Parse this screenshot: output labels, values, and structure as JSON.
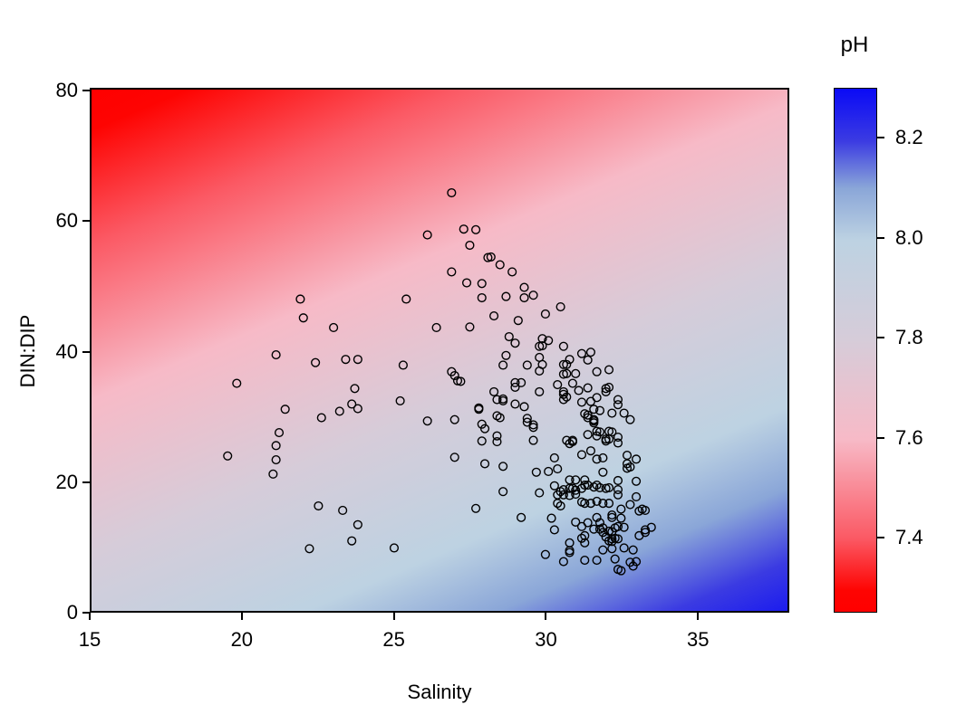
{
  "figure": {
    "background_color": "#ffffff"
  },
  "chart_data": {
    "type": "scatter",
    "title": "",
    "xlabel": "Salinity",
    "ylabel": "DIN:DIP",
    "xlim": [
      15,
      38
    ],
    "ylim": [
      0,
      80.4
    ],
    "x_ticks": [
      15,
      20,
      25,
      30,
      35
    ],
    "x_tick_labels": [
      "15",
      "20",
      "25",
      "30",
      "35"
    ],
    "y_ticks": [
      0,
      20,
      40,
      60,
      80
    ],
    "y_tick_labels": [
      "0",
      "20",
      "40",
      "60",
      "80"
    ],
    "grid": false,
    "marker": "open-circle",
    "marker_color": "#000000",
    "background_field": {
      "description": "diagonal gradient of predicted pH: red (low pH) at top-left to blue (high pH) at bottom-right",
      "angle_deg": 157,
      "stops": [
        {
          "pos": 0,
          "color": "#ff0000"
        },
        {
          "pos": 5,
          "color": "#fe0402"
        },
        {
          "pos": 19,
          "color": "#fb5964"
        },
        {
          "pos": 38,
          "color": "#f7bac7"
        },
        {
          "pos": 57,
          "color": "#d6ccd9"
        },
        {
          "pos": 75,
          "color": "#bdd2e2"
        },
        {
          "pos": 85,
          "color": "#8aa6d8"
        },
        {
          "pos": 94,
          "color": "#3b3be2"
        },
        {
          "pos": 100,
          "color": "#1c1cee"
        }
      ]
    },
    "colorbar": {
      "title": "pH",
      "range": [
        7.25,
        8.3
      ],
      "ticks": [
        8.2,
        8.0,
        7.8,
        7.6,
        7.4
      ],
      "tick_labels": [
        "8.2",
        "8.0",
        "7.8",
        "7.6",
        "7.4"
      ],
      "stops_top_to_bottom": [
        {
          "pos": 0,
          "color": "#0a0af6"
        },
        {
          "pos": 10,
          "color": "#3b3be2"
        },
        {
          "pos": 19,
          "color": "#8aa6d8"
        },
        {
          "pos": 29,
          "color": "#bdd2e2"
        },
        {
          "pos": 48,
          "color": "#d6ccd9"
        },
        {
          "pos": 67,
          "color": "#f7bac7"
        },
        {
          "pos": 86,
          "color": "#fb5964"
        },
        {
          "pos": 96,
          "color": "#fe0402"
        },
        {
          "pos": 100,
          "color": "#ff0000"
        }
      ]
    },
    "points": [
      [
        21.9,
        48.1
      ],
      [
        22.0,
        45.2
      ],
      [
        23.0,
        43.7
      ],
      [
        21.1,
        39.5
      ],
      [
        22.4,
        38.3
      ],
      [
        23.4,
        38.8
      ],
      [
        23.8,
        38.8
      ],
      [
        19.8,
        35.1
      ],
      [
        23.7,
        34.3
      ],
      [
        21.4,
        31.1
      ],
      [
        23.6,
        31.9
      ],
      [
        23.8,
        31.2
      ],
      [
        23.2,
        30.8
      ],
      [
        22.6,
        29.8
      ],
      [
        21.2,
        27.5
      ],
      [
        21.1,
        25.5
      ],
      [
        19.5,
        23.9
      ],
      [
        21.1,
        23.3
      ],
      [
        21.0,
        21.1
      ],
      [
        22.5,
        16.2
      ],
      [
        23.3,
        15.5
      ],
      [
        23.8,
        13.3
      ],
      [
        23.6,
        10.8
      ],
      [
        22.2,
        9.6
      ],
      [
        26.9,
        64.5
      ],
      [
        27.3,
        58.9
      ],
      [
        27.7,
        58.8
      ],
      [
        26.1,
        58.0
      ],
      [
        27.5,
        56.4
      ],
      [
        28.1,
        54.5
      ],
      [
        28.2,
        54.6
      ],
      [
        28.5,
        53.4
      ],
      [
        28.9,
        52.3
      ],
      [
        26.9,
        52.3
      ],
      [
        27.4,
        50.6
      ],
      [
        27.9,
        50.5
      ],
      [
        29.3,
        49.9
      ],
      [
        27.9,
        48.3
      ],
      [
        28.7,
        48.5
      ],
      [
        29.3,
        48.3
      ],
      [
        29.6,
        48.7
      ],
      [
        25.4,
        48.1
      ],
      [
        30.5,
        46.9
      ],
      [
        30.0,
        45.8
      ],
      [
        28.3,
        45.5
      ],
      [
        29.1,
        44.8
      ],
      [
        26.4,
        43.7
      ],
      [
        27.5,
        43.8
      ],
      [
        28.8,
        42.3
      ],
      [
        29.0,
        41.3
      ],
      [
        29.9,
        42.0
      ],
      [
        30.1,
        41.7
      ],
      [
        29.9,
        40.9
      ],
      [
        30.6,
        40.8
      ],
      [
        25.3,
        37.9
      ],
      [
        25.2,
        32.4
      ],
      [
        26.1,
        29.3
      ],
      [
        27.0,
        29.5
      ],
      [
        26.9,
        36.9
      ],
      [
        27.0,
        36.3
      ],
      [
        27.1,
        35.5
      ],
      [
        27.2,
        35.4
      ],
      [
        28.7,
        39.4
      ],
      [
        28.6,
        37.9
      ],
      [
        28.3,
        33.8
      ],
      [
        28.4,
        32.6
      ],
      [
        28.6,
        32.7
      ],
      [
        28.6,
        32.4
      ],
      [
        27.8,
        31.3
      ],
      [
        27.8,
        31.1
      ],
      [
        28.4,
        30.1
      ],
      [
        28.5,
        29.8
      ],
      [
        27.9,
        28.8
      ],
      [
        28.0,
        28.1
      ],
      [
        27.9,
        26.2
      ],
      [
        28.4,
        27.0
      ],
      [
        28.4,
        26.1
      ],
      [
        27.0,
        23.7
      ],
      [
        28.0,
        22.7
      ],
      [
        28.6,
        22.3
      ],
      [
        29.0,
        34.5
      ],
      [
        29.0,
        35.2
      ],
      [
        29.2,
        35.2
      ],
      [
        29.0,
        31.9
      ],
      [
        29.3,
        31.5
      ],
      [
        29.4,
        37.9
      ],
      [
        29.8,
        40.8
      ],
      [
        29.8,
        39.1
      ],
      [
        29.9,
        38.0
      ],
      [
        29.8,
        37.0
      ],
      [
        30.8,
        38.8
      ],
      [
        30.7,
        38.0
      ],
      [
        30.7,
        36.6
      ],
      [
        31.0,
        36.6
      ],
      [
        30.4,
        34.9
      ],
      [
        30.6,
        33.8
      ],
      [
        30.7,
        33.0
      ],
      [
        30.6,
        32.6
      ],
      [
        29.8,
        33.8
      ],
      [
        29.4,
        29.7
      ],
      [
        29.4,
        29.1
      ],
      [
        29.6,
        28.7
      ],
      [
        29.6,
        28.3
      ],
      [
        29.6,
        26.3
      ],
      [
        30.7,
        26.3
      ],
      [
        30.9,
        26.3
      ],
      [
        30.3,
        23.6
      ],
      [
        29.7,
        21.4
      ],
      [
        30.1,
        21.5
      ],
      [
        30.4,
        21.9
      ],
      [
        31.2,
        39.7
      ],
      [
        31.5,
        39.9
      ],
      [
        31.4,
        38.7
      ],
      [
        30.6,
        38.0
      ],
      [
        31.7,
        36.9
      ],
      [
        32.1,
        37.2
      ],
      [
        30.6,
        36.5
      ],
      [
        30.9,
        35.1
      ],
      [
        31.1,
        34.0
      ],
      [
        31.4,
        34.4
      ],
      [
        32.1,
        34.5
      ],
      [
        32.0,
        34.3
      ],
      [
        32.0,
        33.8
      ],
      [
        30.6,
        33.4
      ],
      [
        31.2,
        32.2
      ],
      [
        31.5,
        32.3
      ],
      [
        31.7,
        32.9
      ],
      [
        32.4,
        32.6
      ],
      [
        32.4,
        31.8
      ],
      [
        31.6,
        31.1
      ],
      [
        31.8,
        30.9
      ],
      [
        31.3,
        30.4
      ],
      [
        31.4,
        30.2
      ],
      [
        31.4,
        29.8
      ],
      [
        31.6,
        29.5
      ],
      [
        31.6,
        29.3
      ],
      [
        31.6,
        29.0
      ],
      [
        32.2,
        30.5
      ],
      [
        32.6,
        30.5
      ],
      [
        32.8,
        29.5
      ],
      [
        31.4,
        27.2
      ],
      [
        31.7,
        27.7
      ],
      [
        31.7,
        27.0
      ],
      [
        32.2,
        27.6
      ],
      [
        32.4,
        26.8
      ],
      [
        32.0,
        26.5
      ],
      [
        32.1,
        26.5
      ],
      [
        30.8,
        25.8
      ],
      [
        30.9,
        26.1
      ],
      [
        31.8,
        27.6
      ],
      [
        32.0,
        26.2
      ],
      [
        31.2,
        24.1
      ],
      [
        31.5,
        24.7
      ],
      [
        31.7,
        23.4
      ],
      [
        31.9,
        23.6
      ],
      [
        31.9,
        21.4
      ],
      [
        32.1,
        27.7
      ],
      [
        30.8,
        20.2
      ],
      [
        31.0,
        20.2
      ],
      [
        31.3,
        20.2
      ],
      [
        30.3,
        19.3
      ],
      [
        29.8,
        18.2
      ],
      [
        30.5,
        18.4
      ],
      [
        30.6,
        18.7
      ],
      [
        30.8,
        18.9
      ],
      [
        30.9,
        18.9
      ],
      [
        31.0,
        18.6
      ],
      [
        31.2,
        18.9
      ],
      [
        30.4,
        17.9
      ],
      [
        30.6,
        17.9
      ],
      [
        30.8,
        17.8
      ],
      [
        31.0,
        18.0
      ],
      [
        31.3,
        19.4
      ],
      [
        31.4,
        19.4
      ],
      [
        31.6,
        19.1
      ],
      [
        31.7,
        19.4
      ],
      [
        31.8,
        19.0
      ],
      [
        32.0,
        18.9
      ],
      [
        32.1,
        19.0
      ],
      [
        31.2,
        16.8
      ],
      [
        31.3,
        16.6
      ],
      [
        31.5,
        16.6
      ],
      [
        31.7,
        16.9
      ],
      [
        31.9,
        16.6
      ],
      [
        32.1,
        16.6
      ],
      [
        30.4,
        16.6
      ],
      [
        30.5,
        16.2
      ],
      [
        32.4,
        25.9
      ],
      [
        32.7,
        24.0
      ],
      [
        33.0,
        23.4
      ],
      [
        32.7,
        22.7
      ],
      [
        32.7,
        22.0
      ],
      [
        32.8,
        22.2
      ],
      [
        32.4,
        20.1
      ],
      [
        33.0,
        20.0
      ],
      [
        32.4,
        18.7
      ],
      [
        32.4,
        17.9
      ],
      [
        33.0,
        17.6
      ],
      [
        32.8,
        16.4
      ],
      [
        33.2,
        15.7
      ],
      [
        32.5,
        15.7
      ],
      [
        29.2,
        14.4
      ],
      [
        30.2,
        14.3
      ],
      [
        30.3,
        12.5
      ],
      [
        31.0,
        13.7
      ],
      [
        31.2,
        13.0
      ],
      [
        31.4,
        13.6
      ],
      [
        31.3,
        11.6
      ],
      [
        31.2,
        11.2
      ],
      [
        31.3,
        10.5
      ],
      [
        30.8,
        10.5
      ],
      [
        30.8,
        9.3
      ],
      [
        30.8,
        9.0
      ],
      [
        30.0,
        8.7
      ],
      [
        30.6,
        7.6
      ],
      [
        31.3,
        7.8
      ],
      [
        31.7,
        14.4
      ],
      [
        31.8,
        13.6
      ],
      [
        31.9,
        12.8
      ],
      [
        31.8,
        12.6
      ],
      [
        31.6,
        12.6
      ],
      [
        31.9,
        12.1
      ],
      [
        32.1,
        12.3
      ],
      [
        32.2,
        12.2
      ],
      [
        32.3,
        12.8
      ],
      [
        32.4,
        13.0
      ],
      [
        32.6,
        12.9
      ],
      [
        32.2,
        14.8
      ],
      [
        32.2,
        14.4
      ],
      [
        32.5,
        14.3
      ],
      [
        32.0,
        11.4
      ],
      [
        32.2,
        11.1
      ],
      [
        32.3,
        11.2
      ],
      [
        32.4,
        11.1
      ],
      [
        32.1,
        10.8
      ],
      [
        32.2,
        10.7
      ],
      [
        31.9,
        9.4
      ],
      [
        32.2,
        9.6
      ],
      [
        32.6,
        9.7
      ],
      [
        32.9,
        9.4
      ],
      [
        33.1,
        11.6
      ],
      [
        33.3,
        12.1
      ],
      [
        33.3,
        12.5
      ],
      [
        33.5,
        12.9
      ],
      [
        33.1,
        15.4
      ],
      [
        33.3,
        15.5
      ],
      [
        31.7,
        7.8
      ],
      [
        32.3,
        8.0
      ],
      [
        32.8,
        7.5
      ],
      [
        33.0,
        7.6
      ],
      [
        32.4,
        6.4
      ],
      [
        32.5,
        6.2
      ],
      [
        32.9,
        6.9
      ],
      [
        28.6,
        18.4
      ],
      [
        27.7,
        15.8
      ],
      [
        25.0,
        9.7
      ]
    ]
  }
}
